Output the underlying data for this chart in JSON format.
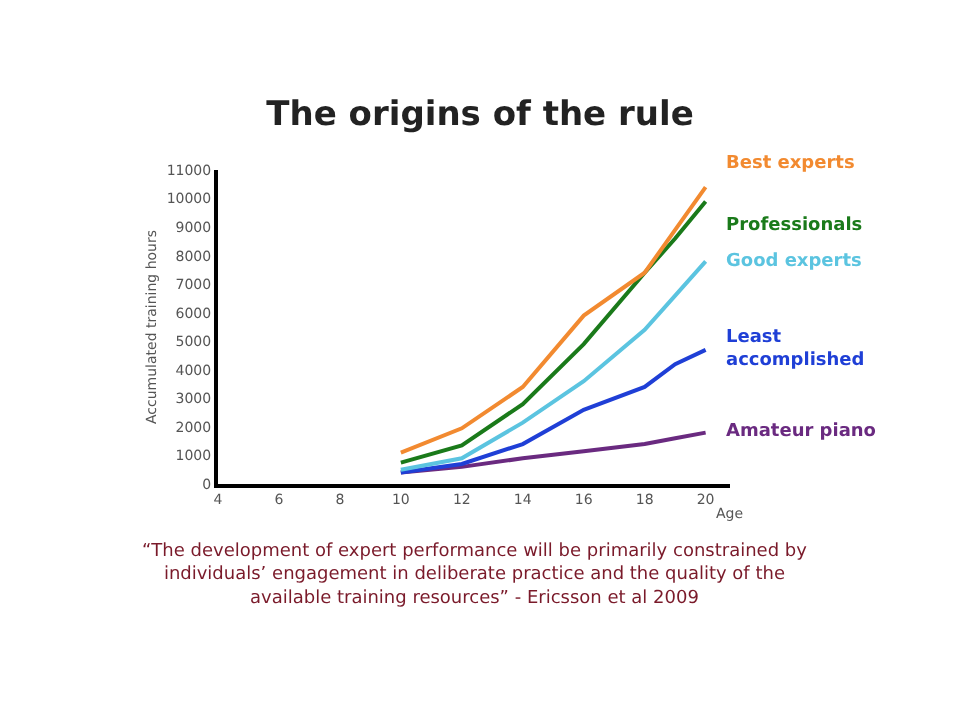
{
  "chart_data": {
    "type": "line",
    "title": "The origins of the rule",
    "xlabel": "Age",
    "ylabel": "Accumulated training hours",
    "x": [
      10,
      12,
      14,
      16,
      18,
      19,
      20
    ],
    "series": [
      {
        "name": "Best experts",
        "color": "#f28a30",
        "values": [
          1100,
          1950,
          3400,
          5900,
          7400,
          8900,
          10400
        ]
      },
      {
        "name": "Professionals",
        "color": "#1a7a1a",
        "values": [
          750,
          1350,
          2800,
          4900,
          7400,
          8600,
          9900
        ]
      },
      {
        "name": "Good experts",
        "color": "#5bc4e0",
        "values": [
          500,
          900,
          2150,
          3600,
          5400,
          6600,
          7800
        ]
      },
      {
        "name": "Least accomplished",
        "color": "#1f3fd6",
        "values": [
          400,
          700,
          1400,
          2600,
          3400,
          4200,
          4700
        ]
      },
      {
        "name": "Amateur piano",
        "color": "#6a2a80",
        "values": [
          400,
          600,
          900,
          1150,
          1400,
          1600,
          1800
        ]
      }
    ],
    "xlim": [
      4,
      20.8
    ],
    "xticks": [
      4,
      6,
      8,
      10,
      12,
      14,
      16,
      18,
      20
    ],
    "ylim": [
      0,
      11000
    ],
    "yticks": [
      0,
      1000,
      2000,
      3000,
      4000,
      5000,
      6000,
      7000,
      8000,
      9000,
      10000,
      11000
    ],
    "legend": false,
    "marker": "none",
    "line_style": "solid",
    "annotations": [
      "“The development of expert performance will be primarily constrained by individuals’ engagement in deliberate practice and the quality of the available training resources” - Ericsson et al 2009"
    ]
  }
}
